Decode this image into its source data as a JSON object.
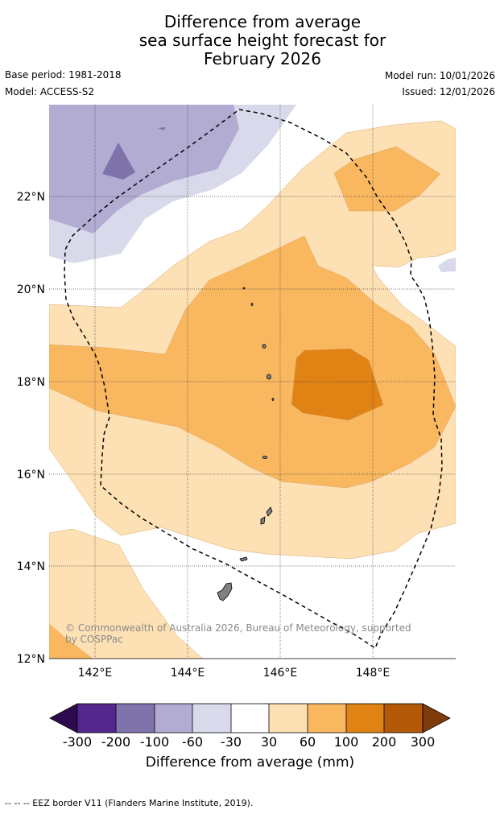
{
  "title": {
    "line1": "Difference from average",
    "line2": "sea surface height forecast for",
    "line3": "February 2026"
  },
  "meta": {
    "base_period": "Base period: 1981-2018",
    "model": "Model: ACCESS-S2",
    "model_run": "Model run: 10/01/2026",
    "issued": "Issued: 12/01/2026"
  },
  "map": {
    "lat_labels": [
      "22°N",
      "20°N",
      "18°N",
      "16°N",
      "14°N",
      "12°N"
    ],
    "lon_labels": [
      "142°E",
      "144°E",
      "146°E",
      "148°E"
    ],
    "copyright": "© Commonwealth of Australia 2026, Bureau of Meteorology, supported by COSPPac"
  },
  "colorbar": {
    "ticks": [
      "-300",
      "-200",
      "-100",
      "-60",
      "-30",
      "30",
      "60",
      "100",
      "200",
      "300"
    ],
    "label": "Difference from average (mm)"
  },
  "footer": "-- -- -- EEZ border V11 (Flanders Marine Institute, 2019).",
  "colors": {
    "neg_extreme": "#2d0a4e",
    "neg_300_200": "#54278f",
    "neg_200_100": "#8073ac",
    "neg_100_60": "#b2abd2",
    "neg_60_30": "#d8daeb",
    "neutral": "#ffffff",
    "pos_30_60": "#fde0b4",
    "pos_60_100": "#f9b75f",
    "pos_100_200": "#e08214",
    "pos_200_300": "#b35806",
    "pos_extreme": "#7f3b08",
    "land": "#808080"
  }
}
